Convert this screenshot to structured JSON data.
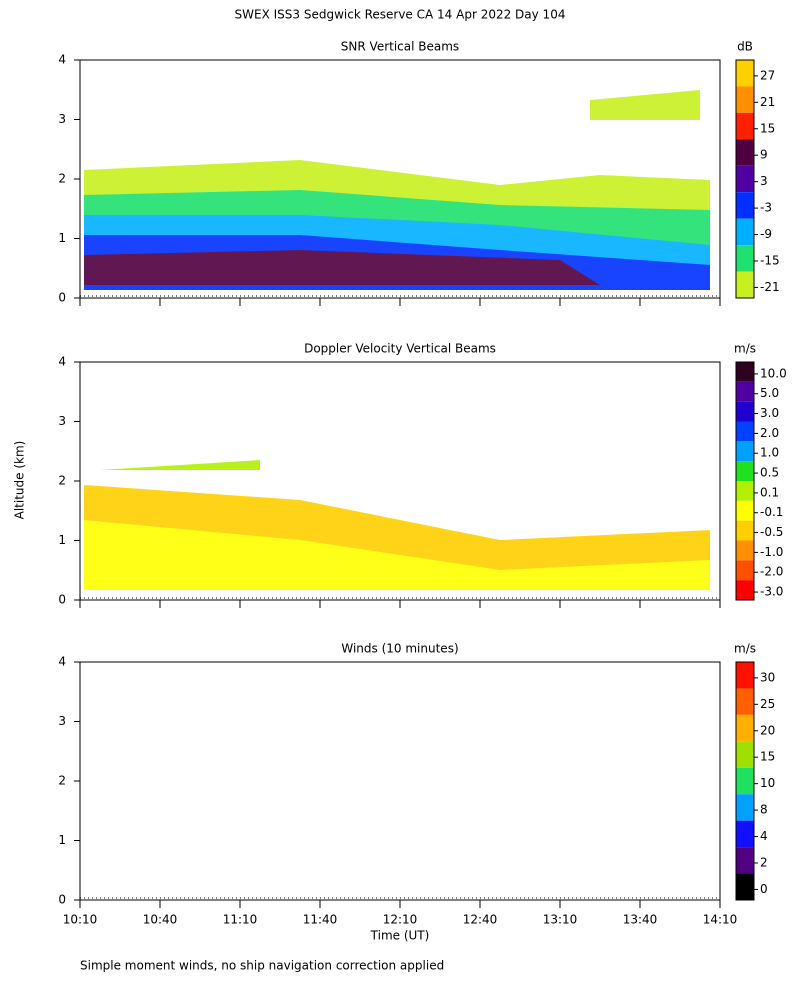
{
  "title": "SWEX ISS3 Sedgwick Reserve CA  14 Apr 2022 Day 104",
  "y_label": "Altitude (km)",
  "x_label": "Time (UT)",
  "footnote": "Simple moment winds, no ship navigation correction applied",
  "x_categories": [
    "10:10",
    "10:40",
    "11:10",
    "11:40",
    "12:10",
    "12:40",
    "13:10",
    "13:40",
    "14:10"
  ],
  "chart_data": [
    {
      "type": "heatmap",
      "title": "SNR Vertical Beams",
      "ylim": [
        0,
        4
      ],
      "yticks": [
        0,
        1,
        2,
        3,
        4
      ],
      "colorbar": {
        "unit": "dB",
        "ticks": [
          27,
          21,
          15,
          9,
          3,
          -3,
          -9,
          -15,
          -21
        ],
        "colors": [
          "#ffd000",
          "#ff9000",
          "#ff2000",
          "#500040",
          "#5000a0",
          "#0030ff",
          "#00b0ff",
          "#20e070",
          "#c8f020"
        ]
      }
    },
    {
      "type": "heatmap",
      "title": "Doppler Velocity Vertical Beams",
      "ylim": [
        0,
        4
      ],
      "yticks": [
        0,
        1,
        2,
        3,
        4
      ],
      "colorbar": {
        "unit": "m/s",
        "ticks": [
          {
            "value": 10,
            "label": "10.0"
          },
          {
            "value": 5,
            "label": "5.0"
          },
          {
            "value": 3,
            "label": "3.0"
          },
          {
            "value": 2,
            "label": "2.0"
          },
          {
            "value": 1,
            "label": "1.0"
          },
          0.5,
          0.1,
          -0.1,
          -0.5,
          {
            "value": -1,
            "label": "-1.0"
          },
          {
            "value": -2,
            "label": "-2.0"
          },
          {
            "value": -3,
            "label": "-3.0"
          }
        ],
        "colors": [
          "#300020",
          "#5000a0",
          "#2000d0",
          "#0040ff",
          "#00a0ff",
          "#20e020",
          "#b0f000",
          "#ffff00",
          "#ffd000",
          "#ff9000",
          "#ff5000",
          "#ff0000"
        ]
      }
    },
    {
      "type": "barbs",
      "title": "Winds (10 minutes)",
      "ylim": [
        0,
        4
      ],
      "yticks": [
        0,
        1,
        2,
        3,
        4
      ],
      "colorbar": {
        "unit": "m/s",
        "ticks": [
          30,
          25,
          20,
          15,
          10,
          8,
          4,
          2,
          0
        ],
        "colors": [
          "#ff1000",
          "#ff6000",
          "#ffb000",
          "#a0e000",
          "#20e060",
          "#00a0ff",
          "#1010ff",
          "#500080",
          "#000000"
        ]
      }
    }
  ]
}
